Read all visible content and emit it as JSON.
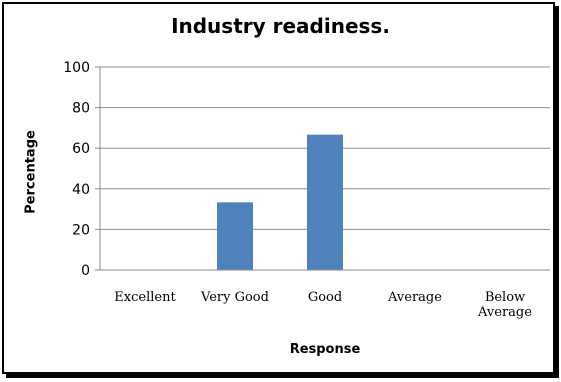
{
  "chart_data": {
    "type": "bar",
    "title": "Industry readiness.",
    "xlabel": "Response",
    "ylabel": "Percentage",
    "categories": [
      "Excellent",
      "Very Good",
      "Good",
      "Average",
      "Below Average"
    ],
    "category_lines": [
      [
        "Excellent"
      ],
      [
        "Very Good"
      ],
      [
        "Good"
      ],
      [
        "Average"
      ],
      [
        "Below",
        "Average"
      ]
    ],
    "values": [
      0,
      33.33,
      66.67,
      0,
      0
    ],
    "ylim": [
      0,
      100
    ],
    "yticks": [
      0,
      20,
      40,
      60,
      80,
      100
    ],
    "grid": true,
    "legend": "none",
    "bar_color": "#4f81bd"
  }
}
